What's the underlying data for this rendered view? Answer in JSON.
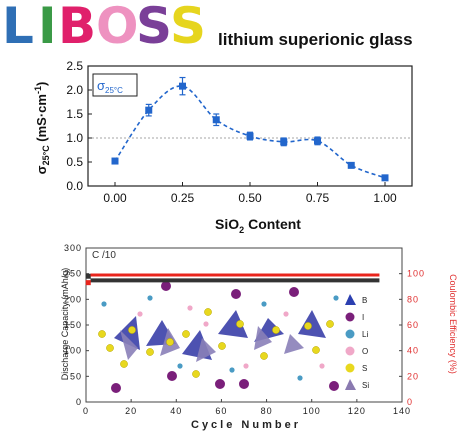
{
  "banner": {
    "logo_letters": [
      {
        "char": "L",
        "color": "#2f6fb5"
      },
      {
        "char": "I",
        "color": "#3a9a46"
      },
      {
        "char": "B",
        "color": "#e0206b"
      },
      {
        "char": "O",
        "color": "#ee92c0"
      },
      {
        "char": "S",
        "color": "#7a3f98"
      },
      {
        "char": "S",
        "color": "#e6d51e"
      }
    ],
    "tagline": "lithium superionic glass"
  },
  "chart_data": [
    {
      "type": "line",
      "x": [
        0.0,
        0.125,
        0.25,
        0.375,
        0.5,
        0.625,
        0.75,
        0.875,
        1.0
      ],
      "series": [
        {
          "name": "σ25°C",
          "values": [
            0.52,
            1.58,
            2.08,
            1.38,
            1.04,
            0.92,
            0.94,
            0.43,
            0.17
          ],
          "errors": [
            0.05,
            0.12,
            0.18,
            0.12,
            0.08,
            0.08,
            0.08,
            0.05,
            0.04
          ],
          "color": "#2266cc"
        }
      ],
      "xlim": [
        -0.1,
        1.1
      ],
      "ylim": [
        0.0,
        2.5
      ],
      "xticks": [
        "0.00",
        "0.25",
        "0.50",
        "0.75",
        "1.00"
      ],
      "yticks": [
        "0.0",
        "0.5",
        "1.0",
        "1.5",
        "2.0",
        "2.5"
      ],
      "xlabel_main": "SiO",
      "xlabel_sub": "2",
      "xlabel_rest": " Content",
      "ylabel_main": "σ",
      "ylabel_sub": "25°C",
      "ylabel_rest": " (mS·cm",
      "ylabel_sup": "-1",
      "ylabel_end": ")",
      "legend_main": "σ",
      "legend_sub": "25°C",
      "reference_line": 1.0,
      "curve": "dashed smooth fit",
      "legend_position": "top-left"
    },
    {
      "type": "scatter",
      "title": "C /10",
      "x_range": [
        0,
        140
      ],
      "xticks": [
        "0",
        "20",
        "40",
        "60",
        "80",
        "100",
        "120",
        "140"
      ],
      "xlabel": "Cycle Number",
      "y_left": {
        "label": "Discharge Capacity (mAh/g)",
        "range": [
          0,
          300
        ],
        "ticks": [
          "0",
          "50",
          "100",
          "150",
          "200",
          "250",
          "300"
        ]
      },
      "y_right": {
        "label": "Coulombic Efficiency (%)",
        "range": [
          0,
          120
        ],
        "ticks": [
          "0",
          "20",
          "40",
          "60",
          "80",
          "100"
        ],
        "color": "#e03030"
      },
      "series": [
        {
          "name": "Discharge Capacity",
          "axis": "left",
          "color": "#333333",
          "first_cycle": {
            "x": 1,
            "y": 245
          },
          "values_from_cycle_2_to_130": 237
        },
        {
          "name": "Coulombic Efficiency",
          "axis": "right",
          "color": "#e8241c",
          "first_cycle": {
            "x": 1,
            "y": 93
          },
          "values_from_cycle_2_to_130": 99
        }
      ],
      "structure_legend": [
        {
          "label": "B",
          "symbol": "triangle",
          "color": "#2b3fb0"
        },
        {
          "label": "I",
          "symbol": "circle",
          "color": "#7a1f7a"
        },
        {
          "label": "Li",
          "symbol": "circle",
          "color": "#4a9bc4"
        },
        {
          "label": "O",
          "symbol": "circle",
          "color": "#f0a8c8"
        },
        {
          "label": "S",
          "symbol": "circle",
          "color": "#e8d81e"
        },
        {
          "label": "Si",
          "symbol": "triangle",
          "color": "#8a7ab0"
        }
      ]
    }
  ]
}
